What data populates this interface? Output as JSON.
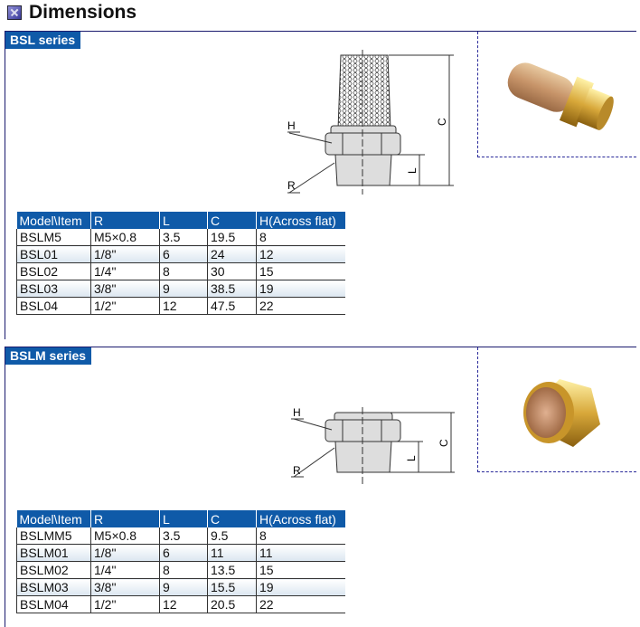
{
  "title": "Dimensions",
  "sections": [
    {
      "name": "BSL series",
      "diagram_labels": {
        "h": "H",
        "r": "R",
        "l": "L",
        "c": "C"
      },
      "headers": [
        "Model\\Item",
        "R",
        "L",
        "C",
        "H(Across flat)"
      ],
      "rows": [
        [
          "BSLM5",
          "M5×0.8",
          "3.5",
          "19.5",
          "8"
        ],
        [
          "BSL01",
          "1/8\"",
          "6",
          "24",
          "12"
        ],
        [
          "BSL02",
          "1/4\"",
          "8",
          "30",
          "15"
        ],
        [
          "BSL03",
          "3/8\"",
          "9",
          "38.5",
          "19"
        ],
        [
          "BSL04",
          "1/2\"",
          "12",
          "47.5",
          "22"
        ]
      ]
    },
    {
      "name": "BSLM series",
      "diagram_labels": {
        "h": "H",
        "r": "R",
        "l": "L",
        "c": "C"
      },
      "headers": [
        "Model\\Item",
        "R",
        "L",
        "C",
        "H(Across flat)"
      ],
      "rows": [
        [
          "BSLMM5",
          "M5×0.8",
          "3.5",
          "9.5",
          "8"
        ],
        [
          "BSLM01",
          "1/8\"",
          "6",
          "11",
          "11"
        ],
        [
          "BSLM02",
          "1/4\"",
          "8",
          "13.5",
          "15"
        ],
        [
          "BSLM03",
          "3/8\"",
          "9",
          "15.5",
          "19"
        ],
        [
          "BSLM04",
          "1/2\"",
          "12",
          "20.5",
          "22"
        ]
      ]
    }
  ],
  "colors": {
    "header_blue": "#0f5aa8",
    "frame": "#1a1a6e"
  }
}
